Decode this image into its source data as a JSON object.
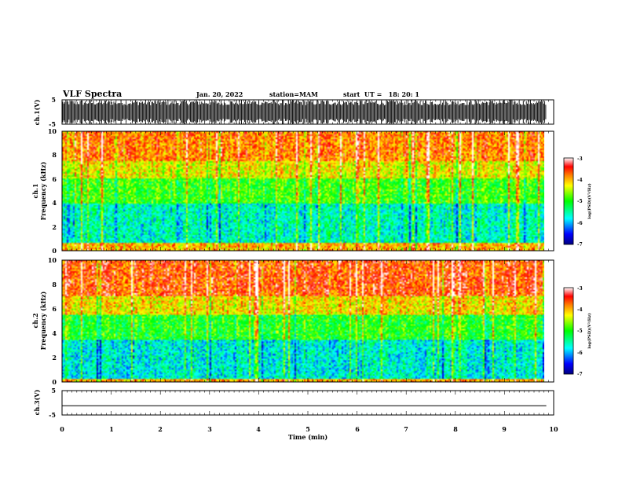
{
  "header": {
    "title": "VLF Spectra",
    "date": "Jan. 20, 2022",
    "station": "station=MAM",
    "start_ut": "start  UT =   18: 20: 1"
  },
  "colors": {
    "spectro_low": "#0000ff",
    "spectro_mid": "#00ff00",
    "spectro_high": "#ff0000",
    "axis": "#000000",
    "background": "#ffffff"
  },
  "chart_data": [
    {
      "type": "line",
      "panel": "ch1-waveform",
      "ylabel": "ch.1(V)",
      "ylim": [
        -5,
        5
      ],
      "yticks": [
        "5",
        "-5"
      ],
      "xlim": [
        0,
        10
      ],
      "note": "dense waveform, fills nearly the full -5 to 5 range"
    },
    {
      "type": "heatmap",
      "panel": "ch1-spectrogram",
      "ylabel_line1": "ch.1",
      "ylabel_line2": "Frequency (kHz)",
      "ylim": [
        0,
        10
      ],
      "yticks": [
        "0",
        "2",
        "4",
        "6",
        "8",
        "10"
      ],
      "xlim": [
        0,
        9.85
      ],
      "z_band_levels": [
        {
          "f_min": 0,
          "f_max": 0.7,
          "log_psd": -4.0
        },
        {
          "f_min": 0.7,
          "f_max": 4.0,
          "log_psd": -5.6
        },
        {
          "f_min": 4.0,
          "f_max": 6.0,
          "log_psd": -4.9
        },
        {
          "f_min": 6.0,
          "f_max": 7.5,
          "log_psd": -4.3
        },
        {
          "f_min": 7.5,
          "f_max": 10,
          "log_psd": -3.8
        }
      ],
      "colorbar": {
        "label": "log(PSD)(V²/Hz)",
        "zlim": [
          -7,
          -3
        ],
        "ticks": [
          "-3",
          "-4",
          "-5",
          "-6",
          "-7"
        ]
      }
    },
    {
      "type": "heatmap",
      "panel": "ch2-spectrogram",
      "ylabel_line1": "ch.2",
      "ylabel_line2": "Frequency (kHz)",
      "ylim": [
        0,
        10
      ],
      "yticks": [
        "0",
        "2",
        "4",
        "6",
        "8",
        "10"
      ],
      "xlim": [
        0,
        9.85
      ],
      "z_band_levels": [
        {
          "f_min": 0,
          "f_max": 0.3,
          "log_psd": -4.0
        },
        {
          "f_min": 0.3,
          "f_max": 3.5,
          "log_psd": -5.7
        },
        {
          "f_min": 3.5,
          "f_max": 5.5,
          "log_psd": -5.0
        },
        {
          "f_min": 5.5,
          "f_max": 7.0,
          "log_psd": -4.2
        },
        {
          "f_min": 7.0,
          "f_max": 10,
          "log_psd": -3.6
        }
      ],
      "colorbar": {
        "label": "log(PSD)(V²/Hz)",
        "zlim": [
          -7,
          -3
        ],
        "ticks": [
          "-3",
          "-4",
          "-5",
          "-6",
          "-7"
        ]
      }
    },
    {
      "type": "line",
      "panel": "ch3-waveform",
      "ylabel": "ch.3(V)",
      "ylim": [
        -5,
        5
      ],
      "yticks": [
        "5",
        "-5"
      ],
      "xlim": [
        0,
        10
      ],
      "y_constant": -1.2
    }
  ],
  "xaxis": {
    "label": "Time (min)",
    "ticks": [
      "0",
      "1",
      "2",
      "3",
      "4",
      "5",
      "6",
      "7",
      "8",
      "9",
      "10"
    ]
  }
}
